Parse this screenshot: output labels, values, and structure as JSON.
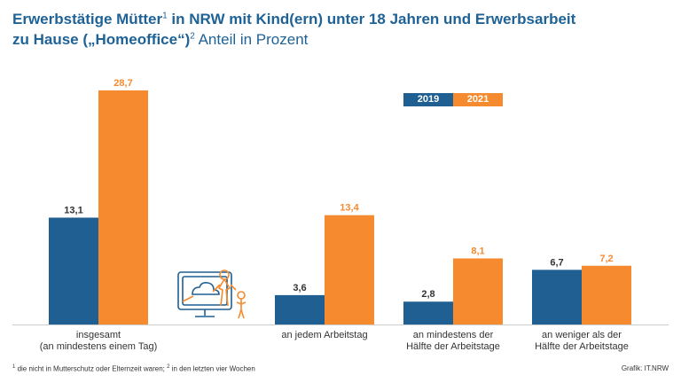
{
  "title": {
    "line1_bold": "Erwerbstätige Mütter",
    "sup1": "1",
    "line1_rest": " in NRW mit Kind(ern) unter 18 Jahren und Erwerbsarbeit",
    "line2_bold": "zu Hause („Homeoffice“)",
    "sup2": "2",
    "unit": " Anteil in Prozent"
  },
  "colors": {
    "y2019": "#1f5f91",
    "y2021": "#f58a2e",
    "axis": "#cccccc"
  },
  "chart_data": {
    "type": "bar",
    "title": "Erwerbstätige Mütter in NRW mit Kind(ern) unter 18 Jahren und Erwerbsarbeit zu Hause („Homeoffice“) Anteil in Prozent",
    "categories": [
      [
        "insgesamt",
        "(an mindestens einem Tag)"
      ],
      [
        "an jedem Arbeitstag"
      ],
      [
        "an mindestens der",
        "Hälfte der Arbeitstage"
      ],
      [
        "an weniger als der",
        "Hälfte der Arbeitstage"
      ]
    ],
    "series": [
      {
        "name": "2019",
        "values": [
          13.1,
          3.6,
          2.8,
          6.7
        ],
        "labels": [
          "13,1",
          "3,6",
          "2,8",
          "6,7"
        ]
      },
      {
        "name": "2021",
        "values": [
          28.7,
          13.4,
          8.1,
          7.2
        ],
        "labels": [
          "28,7",
          "13,4",
          "8,1",
          "7,2"
        ]
      }
    ],
    "ylim": [
      0,
      30
    ],
    "legend": "top-right",
    "grid": false
  },
  "footnote": {
    "sup1": "1",
    "text1": " die nicht in Mutterschutz oder Elternzeit waren; ",
    "sup2": "2",
    "text2": " in den letzten vier Wochen"
  },
  "source": "Grafik: IT.NRW"
}
